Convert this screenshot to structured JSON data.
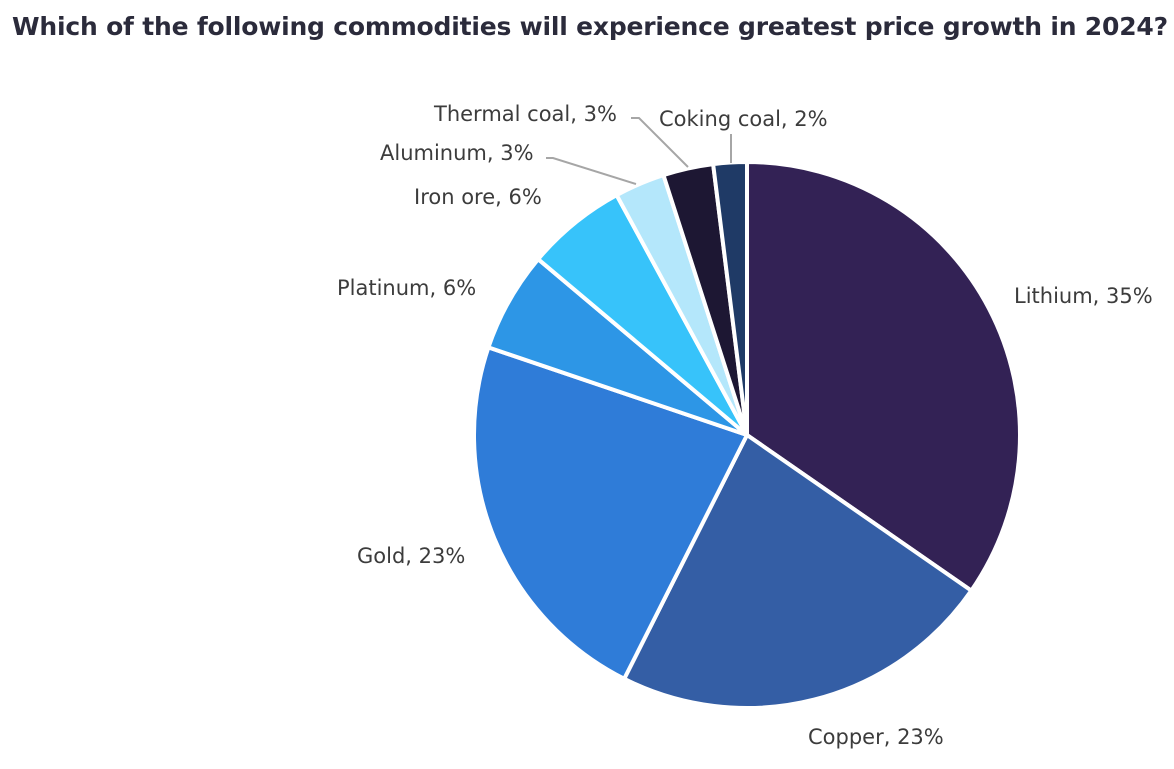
{
  "chart_data": {
    "type": "pie",
    "title": "Which of the following commodities will experience greatest price growth in 2024?",
    "slices": [
      {
        "category": "Lithium",
        "value": 35,
        "label": "Lithium, 35%",
        "color": "#332255"
      },
      {
        "category": "Copper",
        "value": 23,
        "label": "Copper, 23%",
        "color": "#345ea5"
      },
      {
        "category": "Gold",
        "value": 23,
        "label": "Gold, 23%",
        "color": "#2f7cd8"
      },
      {
        "category": "Platinum",
        "value": 6,
        "label": "Platinum, 6%",
        "color": "#2d96e6"
      },
      {
        "category": "Iron ore",
        "value": 6,
        "label": "Iron ore, 6%",
        "color": "#37c3fa"
      },
      {
        "category": "Aluminum",
        "value": 3,
        "label": "Aluminum, 3%",
        "color": "#b4e7fb"
      },
      {
        "category": "Thermal coal",
        "value": 3,
        "label": "Thermal coal, 3%",
        "color": "#1d1733"
      },
      {
        "category": "Coking coal",
        "value": 2,
        "label": "Coking coal, 2%",
        "color": "#1f3a66"
      }
    ],
    "start_angle": "12 o'clock",
    "direction": "clockwise",
    "legend": "none",
    "label_style": "outside with leader lines for small slices"
  }
}
